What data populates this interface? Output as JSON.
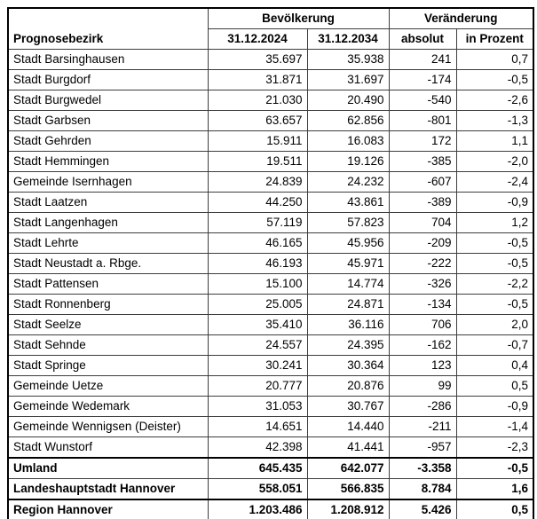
{
  "table": {
    "group_headers": {
      "bevoelkerung": "Bevölkerung",
      "veraenderung": "Veränderung"
    },
    "column_headers": {
      "district": "Prognosebezirk",
      "pop_2024": "31.12.2024",
      "pop_2034": "31.12.2034",
      "change_absolute": "absolut",
      "change_percent": "in Prozent"
    },
    "rows": [
      {
        "name": "Stadt Barsinghausen",
        "pop_2024": "35.697",
        "pop_2034": "35.938",
        "change_absolute": "241",
        "change_percent": "0,7"
      },
      {
        "name": "Stadt Burgdorf",
        "pop_2024": "31.871",
        "pop_2034": "31.697",
        "change_absolute": "-174",
        "change_percent": "-0,5"
      },
      {
        "name": "Stadt Burgwedel",
        "pop_2024": "21.030",
        "pop_2034": "20.490",
        "change_absolute": "-540",
        "change_percent": "-2,6"
      },
      {
        "name": "Stadt Garbsen",
        "pop_2024": "63.657",
        "pop_2034": "62.856",
        "change_absolute": "-801",
        "change_percent": "-1,3"
      },
      {
        "name": "Stadt Gehrden",
        "pop_2024": "15.911",
        "pop_2034": "16.083",
        "change_absolute": "172",
        "change_percent": "1,1"
      },
      {
        "name": "Stadt Hemmingen",
        "pop_2024": "19.511",
        "pop_2034": "19.126",
        "change_absolute": "-385",
        "change_percent": "-2,0"
      },
      {
        "name": "Gemeinde Isernhagen",
        "pop_2024": "24.839",
        "pop_2034": "24.232",
        "change_absolute": "-607",
        "change_percent": "-2,4"
      },
      {
        "name": "Stadt Laatzen",
        "pop_2024": "44.250",
        "pop_2034": "43.861",
        "change_absolute": "-389",
        "change_percent": "-0,9"
      },
      {
        "name": "Stadt Langenhagen",
        "pop_2024": "57.119",
        "pop_2034": "57.823",
        "change_absolute": "704",
        "change_percent": "1,2"
      },
      {
        "name": "Stadt Lehrte",
        "pop_2024": "46.165",
        "pop_2034": "45.956",
        "change_absolute": "-209",
        "change_percent": "-0,5"
      },
      {
        "name": "Stadt Neustadt a. Rbge.",
        "pop_2024": "46.193",
        "pop_2034": "45.971",
        "change_absolute": "-222",
        "change_percent": "-0,5"
      },
      {
        "name": "Stadt Pattensen",
        "pop_2024": "15.100",
        "pop_2034": "14.774",
        "change_absolute": "-326",
        "change_percent": "-2,2"
      },
      {
        "name": "Stadt Ronnenberg",
        "pop_2024": "25.005",
        "pop_2034": "24.871",
        "change_absolute": "-134",
        "change_percent": "-0,5"
      },
      {
        "name": "Stadt Seelze",
        "pop_2024": "35.410",
        "pop_2034": "36.116",
        "change_absolute": "706",
        "change_percent": "2,0"
      },
      {
        "name": "Stadt Sehnde",
        "pop_2024": "24.557",
        "pop_2034": "24.395",
        "change_absolute": "-162",
        "change_percent": "-0,7"
      },
      {
        "name": "Stadt Springe",
        "pop_2024": "30.241",
        "pop_2034": "30.364",
        "change_absolute": "123",
        "change_percent": "0,4"
      },
      {
        "name": "Gemeinde Uetze",
        "pop_2024": "20.777",
        "pop_2034": "20.876",
        "change_absolute": "99",
        "change_percent": "0,5"
      },
      {
        "name": "Gemeinde Wedemark",
        "pop_2024": "31.053",
        "pop_2034": "30.767",
        "change_absolute": "-286",
        "change_percent": "-0,9"
      },
      {
        "name": "Gemeinde Wennigsen (Deister)",
        "pop_2024": "14.651",
        "pop_2034": "14.440",
        "change_absolute": "-211",
        "change_percent": "-1,4"
      },
      {
        "name": "Stadt Wunstorf",
        "pop_2024": "42.398",
        "pop_2034": "41.441",
        "change_absolute": "-957",
        "change_percent": "-2,3"
      }
    ],
    "summary_rows": [
      {
        "name": "Umland",
        "pop_2024": "645.435",
        "pop_2034": "642.077",
        "change_absolute": "-3.358",
        "change_percent": "-0,5"
      },
      {
        "name": "Landeshauptstadt Hannover",
        "pop_2024": "558.051",
        "pop_2034": "566.835",
        "change_absolute": "8.784",
        "change_percent": "1,6"
      },
      {
        "name": "Region Hannover",
        "pop_2024": "1.203.486",
        "pop_2034": "1.208.912",
        "change_absolute": "5.426",
        "change_percent": "0,5"
      }
    ]
  },
  "colors": {
    "outer_border": "#000000",
    "grid_line": "#3d3d3d",
    "text": "#000000",
    "background": "#ffffff"
  }
}
